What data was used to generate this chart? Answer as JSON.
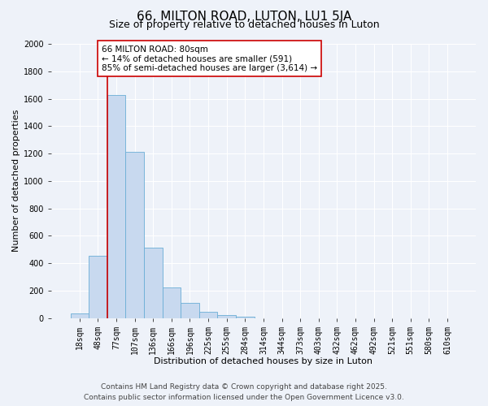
{
  "title": "66, MILTON ROAD, LUTON, LU1 5JA",
  "subtitle": "Size of property relative to detached houses in Luton",
  "xlabel": "Distribution of detached houses by size in Luton",
  "ylabel": "Number of detached properties",
  "categories": [
    "18sqm",
    "48sqm",
    "77sqm",
    "107sqm",
    "136sqm",
    "166sqm",
    "196sqm",
    "225sqm",
    "255sqm",
    "284sqm",
    "314sqm",
    "344sqm",
    "373sqm",
    "403sqm",
    "432sqm",
    "462sqm",
    "492sqm",
    "521sqm",
    "551sqm",
    "580sqm",
    "610sqm"
  ],
  "values": [
    30,
    455,
    1625,
    1210,
    510,
    220,
    110,
    45,
    20,
    10,
    0,
    0,
    0,
    0,
    0,
    0,
    0,
    0,
    0,
    0,
    0
  ],
  "bar_color": "#c8d9ef",
  "bar_edge_color": "#6aaed6",
  "bar_width": 1.0,
  "vline_x_index": 2,
  "vline_color": "#cc0000",
  "annotation_text": "66 MILTON ROAD: 80sqm\n← 14% of detached houses are smaller (591)\n85% of semi-detached houses are larger (3,614) →",
  "annotation_box_color": "white",
  "annotation_box_edge_color": "#cc0000",
  "ylim": [
    0,
    2000
  ],
  "yticks": [
    0,
    200,
    400,
    600,
    800,
    1000,
    1200,
    1400,
    1600,
    1800,
    2000
  ],
  "footer_line1": "Contains HM Land Registry data © Crown copyright and database right 2025.",
  "footer_line2": "Contains public sector information licensed under the Open Government Licence v3.0.",
  "bg_color": "#eef2f9",
  "grid_color": "#ffffff",
  "title_fontsize": 11,
  "subtitle_fontsize": 9,
  "axis_label_fontsize": 8,
  "tick_fontsize": 7,
  "annotation_fontsize": 7.5,
  "footer_fontsize": 6.5
}
